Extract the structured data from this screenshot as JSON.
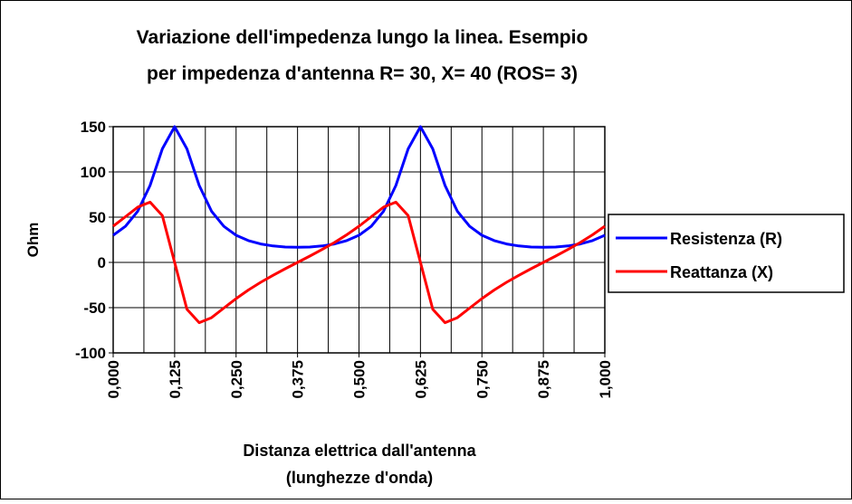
{
  "chart_data": {
    "type": "line",
    "title": "Variazione dell'impedenza lungo la linea. Esempio",
    "subtitle": "per impedenza d'antenna R= 30, X= 40 (ROS= 3)",
    "ylabel": "Ohm",
    "xlabel": "Distanza elettrica dall'antenna",
    "xlabel2": "(lunghezze d'onda)",
    "x": [
      0,
      0.025,
      0.05,
      0.075,
      0.1,
      0.125,
      0.15,
      0.175,
      0.2,
      0.225,
      0.25,
      0.275,
      0.3,
      0.325,
      0.35,
      0.375,
      0.4,
      0.425,
      0.45,
      0.475,
      0.5,
      0.525,
      0.55,
      0.575,
      0.6,
      0.625,
      0.65,
      0.675,
      0.7,
      0.725,
      0.75,
      0.775,
      0.8,
      0.825,
      0.85,
      0.875,
      0.9,
      0.925,
      0.95,
      0.975,
      1
    ],
    "series": [
      {
        "name": "Resistenza (R)",
        "color": "#0000ff",
        "values": [
          30,
          39.9,
          56.6,
          85.0,
          125.5,
          150,
          125.5,
          85.0,
          56.6,
          39.9,
          30,
          24.1,
          20.4,
          18.2,
          17.0,
          16.7,
          17.0,
          18.2,
          20.4,
          24.1,
          30,
          39.9,
          56.6,
          85.0,
          125.5,
          150,
          125.5,
          85.0,
          56.6,
          39.9,
          30,
          24.1,
          20.4,
          18.2,
          17.0,
          16.7,
          17.0,
          18.2,
          20.4,
          24.1,
          30
        ]
      },
      {
        "name": "Reattanza (X)",
        "color": "#ff0000",
        "values": [
          40,
          50.5,
          61.1,
          66.6,
          51.7,
          0,
          -51.7,
          -66.6,
          -61.1,
          -50.5,
          -40,
          -30.5,
          -22.0,
          -14.3,
          -7.0,
          0,
          7.0,
          14.3,
          22.0,
          30.5,
          40,
          50.5,
          61.1,
          66.6,
          51.7,
          0,
          -51.7,
          -66.6,
          -61.1,
          -50.5,
          -40,
          -30.5,
          -22.0,
          -14.3,
          -7.0,
          0,
          7.0,
          14.3,
          22.0,
          30.5,
          40
        ]
      }
    ],
    "xlim": [
      0,
      1
    ],
    "xticks": [
      {
        "value": 0,
        "label": "0,000"
      },
      {
        "value": 0.125,
        "label": "0,125"
      },
      {
        "value": 0.25,
        "label": "0,250"
      },
      {
        "value": 0.375,
        "label": "0,375"
      },
      {
        "value": 0.5,
        "label": "0,500"
      },
      {
        "value": 0.625,
        "label": "0,625"
      },
      {
        "value": 0.75,
        "label": "0,750"
      },
      {
        "value": 0.875,
        "label": "0,875"
      },
      {
        "value": 1,
        "label": "1,000"
      }
    ],
    "xminorticks": [
      0.0625,
      0.1875,
      0.3125,
      0.4375,
      0.5625,
      0.6875,
      0.8125,
      0.9375
    ],
    "ylim": [
      -100,
      150
    ],
    "yticks": [
      -100,
      -50,
      0,
      50,
      100,
      150
    ],
    "grid": true,
    "legend": "right"
  }
}
